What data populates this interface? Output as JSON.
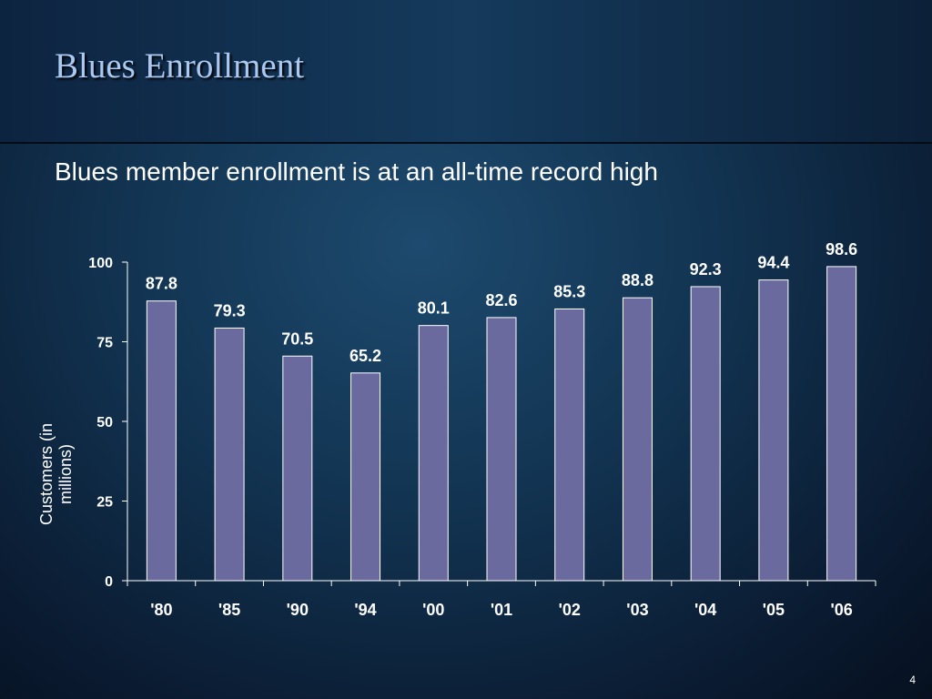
{
  "chart_data": {
    "type": "bar",
    "title": "Blues Enrollment",
    "subtitle": "Blues member enrollment is at an all-time record high",
    "y_label": "Customers (in millions)",
    "categories": [
      "'80",
      "'85",
      "'90",
      "'94",
      "'00",
      "'01",
      "'02",
      "'03",
      "'04",
      "'05",
      "'06"
    ],
    "values": [
      87.8,
      79.3,
      70.5,
      65.2,
      80.1,
      82.6,
      85.3,
      88.8,
      92.3,
      94.4,
      98.6
    ],
    "color": "#6b6a9f",
    "ylim": [
      0,
      100
    ],
    "yticks": [
      0,
      25,
      50,
      75,
      100
    ],
    "grid": false
  },
  "page_number": 4
}
